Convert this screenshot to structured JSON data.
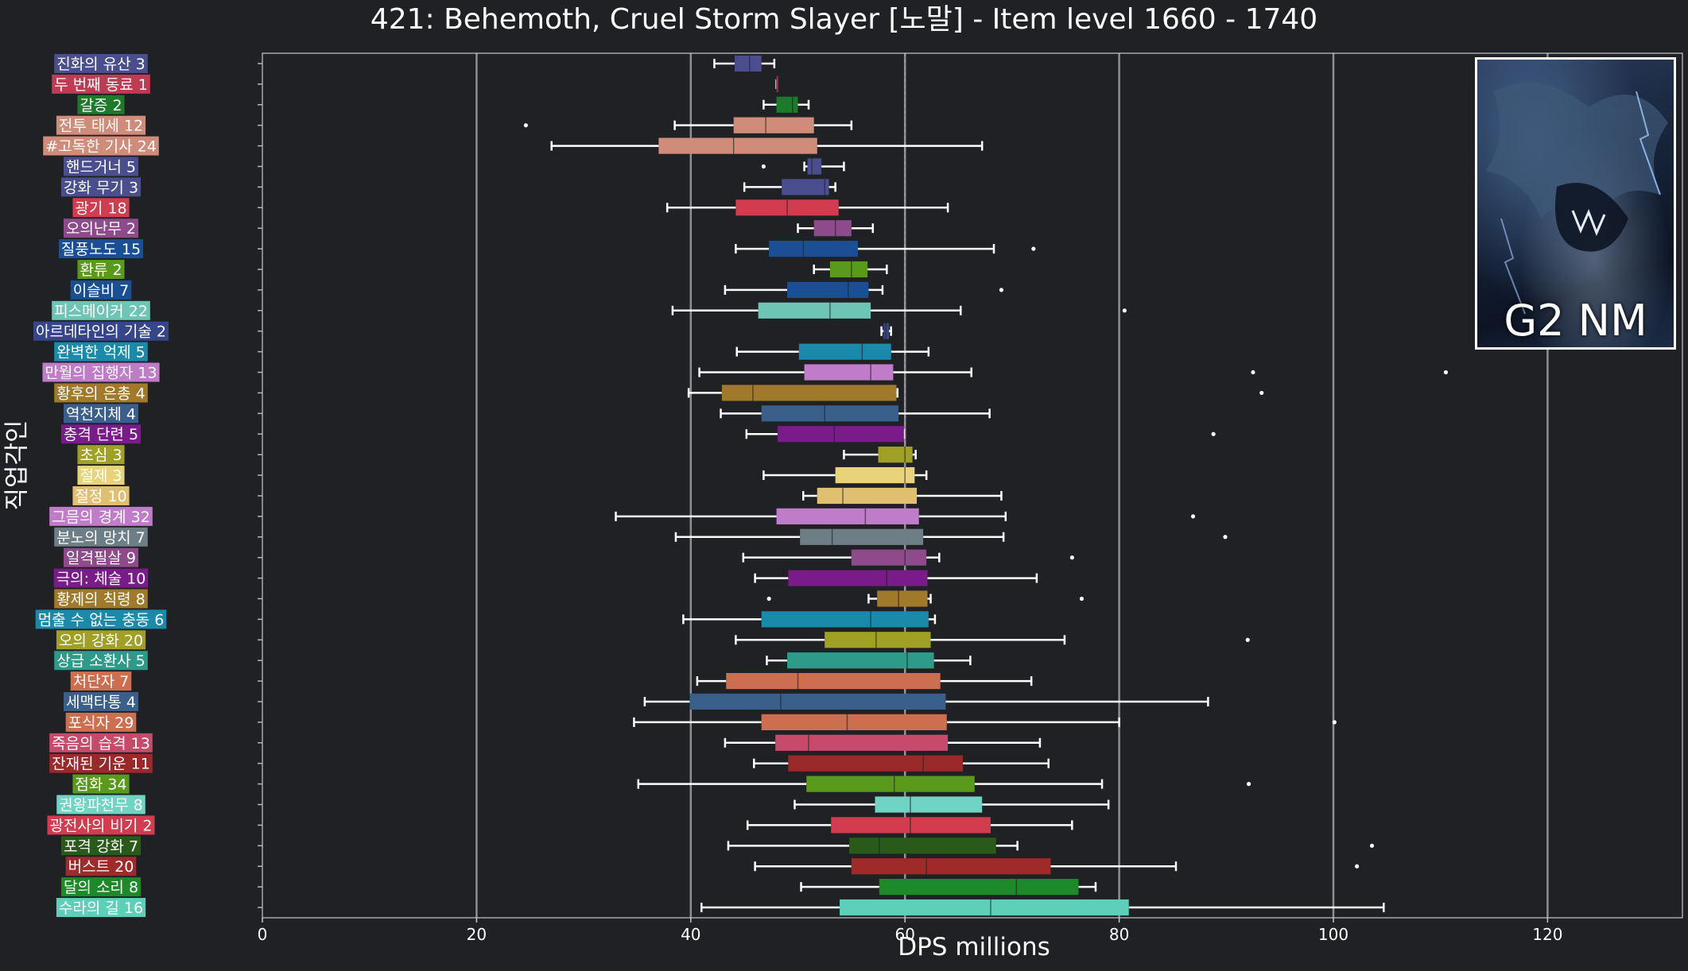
{
  "chart_data": {
    "type": "boxplot",
    "title": "421: Behemoth, Cruel Storm Slayer [노말] - Item level 1660 - 1740",
    "xlabel": "DPS millions",
    "ylabel": "직업각인",
    "xlim": [
      0,
      133
    ],
    "xticks": [
      0,
      20,
      40,
      60,
      80,
      100,
      120
    ],
    "grid": "vertical",
    "inset_label": "G2 NM",
    "overall_median": 60,
    "rows": [
      {
        "label": "진화의 유산 3",
        "color": "#4a4e8e",
        "whisker_low": 42.2,
        "q1": 44.1,
        "median": 45.5,
        "q3": 46.6,
        "whisker_high": 47.8,
        "outliers": []
      },
      {
        "label": "두 번째 동료 1",
        "color": "#c13a53",
        "whisker_low": 48.0,
        "q1": 48.0,
        "median": 48.0,
        "q3": 48.0,
        "whisker_high": 48.0,
        "outliers": []
      },
      {
        "label": "갈증 2",
        "color": "#1d7a2a",
        "whisker_low": 46.8,
        "q1": 48.0,
        "median": 49.5,
        "q3": 50.0,
        "whisker_high": 51.0,
        "outliers": []
      },
      {
        "label": "전투 태세 12",
        "color": "#d18b79",
        "whisker_low": 38.5,
        "q1": 44.0,
        "median": 47.0,
        "q3": 51.5,
        "whisker_high": 55.0,
        "outliers": [
          24.6
        ]
      },
      {
        "label": "#고독한 기사 24",
        "color": "#d18b79",
        "whisker_low": 27.0,
        "q1": 37.0,
        "median": 44.0,
        "q3": 51.8,
        "whisker_high": 67.2,
        "outliers": []
      },
      {
        "label": "핸드거너 5",
        "color": "#4a4e8e",
        "whisker_low": 50.6,
        "q1": 50.9,
        "median": 51.3,
        "q3": 52.2,
        "whisker_high": 54.3,
        "outliers": [
          46.8
        ]
      },
      {
        "label": "강화 무기 3",
        "color": "#4a4e8e",
        "whisker_low": 45.0,
        "q1": 48.5,
        "median": 52.5,
        "q3": 52.9,
        "whisker_high": 53.5,
        "outliers": []
      },
      {
        "label": "광기 18",
        "color": "#d23c4e",
        "whisker_low": 37.8,
        "q1": 44.2,
        "median": 49.0,
        "q3": 53.8,
        "whisker_high": 64.0,
        "outliers": []
      },
      {
        "label": "오의난무 2",
        "color": "#8e4a8a",
        "whisker_low": 50.0,
        "q1": 51.5,
        "median": 53.5,
        "q3": 55.0,
        "whisker_high": 57.0,
        "outliers": []
      },
      {
        "label": "질풍노도 15",
        "color": "#1a4f96",
        "whisker_low": 44.2,
        "q1": 47.3,
        "median": 50.5,
        "q3": 55.6,
        "whisker_high": 68.3,
        "outliers": [
          72.0
        ]
      },
      {
        "label": "환류 2",
        "color": "#5a9a1a",
        "whisker_low": 51.5,
        "q1": 53.0,
        "median": 55.0,
        "q3": 56.5,
        "whisker_high": 58.3,
        "outliers": []
      },
      {
        "label": "이슬비 7",
        "color": "#1a4f96",
        "whisker_low": 43.2,
        "q1": 49.0,
        "median": 54.7,
        "q3": 56.6,
        "whisker_high": 57.9,
        "outliers": [
          69.0
        ]
      },
      {
        "label": "피스메이커 22",
        "color": "#6ec5b5",
        "whisker_low": 38.3,
        "q1": 46.3,
        "median": 53.0,
        "q3": 56.8,
        "whisker_high": 65.2,
        "outliers": [
          80.5
        ]
      },
      {
        "label": "아르데타인의 기술 2",
        "color": "#37468c",
        "whisker_low": 57.8,
        "q1": 58.0,
        "median": 58.2,
        "q3": 58.5,
        "whisker_high": 58.7,
        "outliers": []
      },
      {
        "label": "완벽한 억제 5",
        "color": "#1a8aaa",
        "whisker_low": 44.3,
        "q1": 50.1,
        "median": 56.0,
        "q3": 58.7,
        "whisker_high": 62.2,
        "outliers": []
      },
      {
        "label": "만월의 집행자 13",
        "color": "#c07bc9",
        "whisker_low": 40.8,
        "q1": 50.6,
        "median": 56.8,
        "q3": 58.9,
        "whisker_high": 66.2,
        "outliers": [
          92.5,
          110.5
        ]
      },
      {
        "label": "황후의 은총 4",
        "color": "#a07a2a",
        "whisker_low": 39.8,
        "q1": 42.9,
        "median": 45.8,
        "q3": 59.2,
        "whisker_high": 59.3,
        "outliers": [
          93.3
        ]
      },
      {
        "label": "역천지체 4",
        "color": "#3a5f8a",
        "whisker_low": 42.8,
        "q1": 46.6,
        "median": 52.5,
        "q3": 59.4,
        "whisker_high": 67.9,
        "outliers": []
      },
      {
        "label": "충격 단련 5",
        "color": "#7a1b8a",
        "whisker_low": 45.2,
        "q1": 48.1,
        "median": 53.4,
        "q3": 59.9,
        "whisker_high": 59.9,
        "outliers": [
          88.8
        ]
      },
      {
        "label": "초심 3",
        "color": "#a0a026",
        "whisker_low": 54.3,
        "q1": 57.5,
        "median": 60.0,
        "q3": 60.7,
        "whisker_high": 61.0,
        "outliers": []
      },
      {
        "label": "절제 3",
        "color": "#e9d37a",
        "whisker_low": 46.8,
        "q1": 53.5,
        "median": 60.0,
        "q3": 60.9,
        "whisker_high": 62.0,
        "outliers": []
      },
      {
        "label": "절정 10",
        "color": "#e0c070",
        "whisker_low": 50.5,
        "q1": 51.8,
        "median": 54.2,
        "q3": 61.1,
        "whisker_high": 69.0,
        "outliers": []
      },
      {
        "label": "그믐의 경계 32",
        "color": "#c07bc9",
        "whisker_low": 33.0,
        "q1": 48.0,
        "median": 56.3,
        "q3": 61.3,
        "whisker_high": 69.4,
        "outliers": [
          86.9
        ]
      },
      {
        "label": "분노의 망치 7",
        "color": "#6e7e86",
        "whisker_low": 38.6,
        "q1": 50.2,
        "median": 53.2,
        "q3": 61.7,
        "whisker_high": 69.2,
        "outliers": [
          89.9
        ]
      },
      {
        "label": "일격필살 9",
        "color": "#8e4a8a",
        "whisker_low": 44.9,
        "q1": 55.0,
        "median": 60.0,
        "q3": 62.0,
        "whisker_high": 63.2,
        "outliers": [
          75.6
        ]
      },
      {
        "label": "극의: 체술 10",
        "color": "#7a1b8a",
        "whisker_low": 46.0,
        "q1": 49.1,
        "median": 58.3,
        "q3": 62.1,
        "whisker_high": 72.3,
        "outliers": []
      },
      {
        "label": "황제의 칙령 8",
        "color": "#a07a2a",
        "whisker_low": 56.6,
        "q1": 57.4,
        "median": 59.4,
        "q3": 62.1,
        "whisker_high": 62.4,
        "outliers": [
          47.3,
          76.5
        ]
      },
      {
        "label": "멈출 수 없는 충동 6",
        "color": "#1a8aaa",
        "whisker_low": 39.3,
        "q1": 46.6,
        "median": 56.8,
        "q3": 62.2,
        "whisker_high": 62.8,
        "outliers": []
      },
      {
        "label": "오의 강화 20",
        "color": "#a0a026",
        "whisker_low": 44.2,
        "q1": 52.5,
        "median": 57.3,
        "q3": 62.4,
        "whisker_high": 74.9,
        "outliers": [
          92.0
        ]
      },
      {
        "label": "상급 소환사 5",
        "color": "#2e9a8a",
        "whisker_low": 47.1,
        "q1": 49.0,
        "median": 60.2,
        "q3": 62.7,
        "whisker_high": 66.1,
        "outliers": []
      },
      {
        "label": "처단자 7",
        "color": "#cd6e4e",
        "whisker_low": 40.6,
        "q1": 43.3,
        "median": 50.0,
        "q3": 63.3,
        "whisker_high": 71.8,
        "outliers": []
      },
      {
        "label": "세맥타통 4",
        "color": "#3a5f8a",
        "whisker_low": 35.7,
        "q1": 39.9,
        "median": 48.4,
        "q3": 63.8,
        "whisker_high": 88.3,
        "outliers": []
      },
      {
        "label": "포식자 29",
        "color": "#cd6e4e",
        "whisker_low": 34.7,
        "q1": 46.6,
        "median": 54.6,
        "q3": 63.9,
        "whisker_high": 80.0,
        "outliers": [
          100.1
        ]
      },
      {
        "label": "죽음의 습격 13",
        "color": "#c74a6a",
        "whisker_low": 43.2,
        "q1": 47.9,
        "median": 51.0,
        "q3": 64.0,
        "whisker_high": 72.6,
        "outliers": []
      },
      {
        "label": "잔재된 기운 11",
        "color": "#9a2a2a",
        "whisker_low": 45.9,
        "q1": 49.1,
        "median": 61.7,
        "q3": 65.4,
        "whisker_high": 73.4,
        "outliers": []
      },
      {
        "label": "점화 34",
        "color": "#5a9a1a",
        "whisker_low": 35.1,
        "q1": 50.8,
        "median": 59.0,
        "q3": 66.5,
        "whisker_high": 78.4,
        "outliers": [
          92.1
        ]
      },
      {
        "label": "권왕파천무 8",
        "color": "#6ed5c5",
        "whisker_low": 49.7,
        "q1": 57.2,
        "median": 60.5,
        "q3": 67.2,
        "whisker_high": 79.0,
        "outliers": []
      },
      {
        "label": "광전사의 비기 2",
        "color": "#d23c4e",
        "whisker_low": 45.3,
        "q1": 53.1,
        "median": 60.5,
        "q3": 68.0,
        "whisker_high": 75.6,
        "outliers": []
      },
      {
        "label": "포격 강화 7",
        "color": "#2a5a1a",
        "whisker_low": 43.5,
        "q1": 54.8,
        "median": 57.6,
        "q3": 68.5,
        "whisker_high": 70.5,
        "outliers": [
          103.6
        ]
      },
      {
        "label": "버스트 20",
        "color": "#a02a2a",
        "whisker_low": 46.0,
        "q1": 55.0,
        "median": 62.0,
        "q3": 73.6,
        "whisker_high": 85.3,
        "outliers": [
          102.2
        ]
      },
      {
        "label": "달의 소리 8",
        "color": "#1d8a2a",
        "whisker_low": 50.3,
        "q1": 57.6,
        "median": 70.4,
        "q3": 76.2,
        "whisker_high": 77.8,
        "outliers": []
      },
      {
        "label": "수라의 길 16",
        "color": "#5ecfb8",
        "whisker_low": 41.0,
        "q1": 53.9,
        "median": 68.0,
        "q3": 80.9,
        "whisker_high": 104.7,
        "outliers": []
      }
    ]
  }
}
